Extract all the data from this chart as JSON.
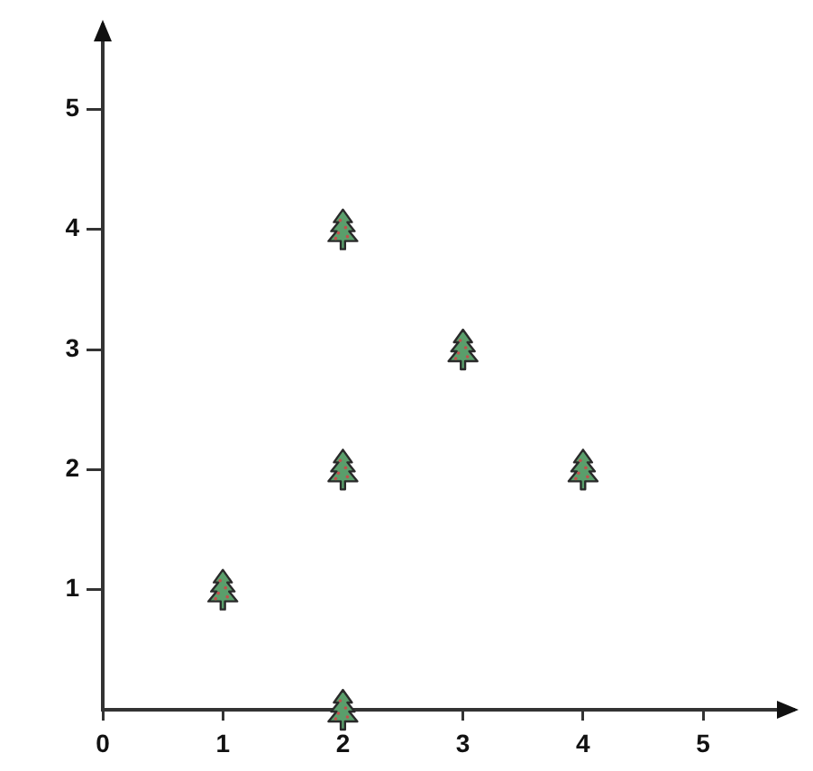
{
  "chart_data": {
    "type": "scatter",
    "x": [
      1,
      2,
      2,
      2,
      3,
      4
    ],
    "values": [
      1,
      0,
      2,
      4,
      3,
      2
    ],
    "color": "#5a9e6b",
    "xlim": [
      0,
      5.75
    ],
    "ylim": [
      0,
      5.7
    ],
    "xticks": [
      0,
      1,
      2,
      3,
      4,
      5
    ],
    "yticks": [
      1,
      2,
      3,
      4,
      5
    ],
    "marker": "triangle",
    "legend": false
  }
}
